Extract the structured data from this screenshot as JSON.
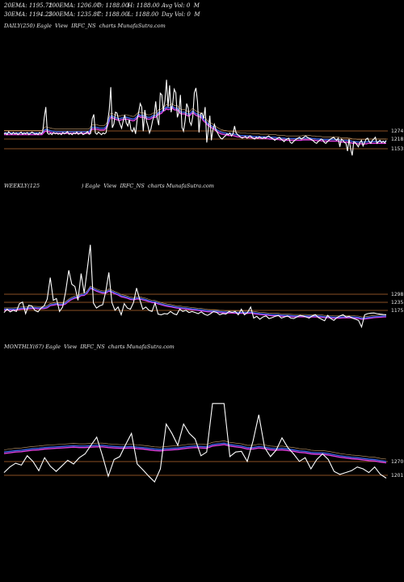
{
  "header": {
    "ema20": "20EMA: 1195.72",
    "ema100": "100EMA: 1206.07",
    "open": "O: 1188.00",
    "high": "H: 1188.00",
    "avg_vol": "Avg Vol: 0  M",
    "ema30": "30EMA: 1194.25",
    "ema200": "200EMA: 1235.87",
    "close": "C: 1188.00",
    "low": "L: 1188.00",
    "day_vol": "Day Vol: 0  M"
  },
  "colors": {
    "price": "#ffffff",
    "ema_blue": "#3b5fe0",
    "ema_magenta": "#e040e0",
    "ema_tan": "#c8a070",
    "level": "#b86a30"
  },
  "chart_data": [
    {
      "type": "line",
      "title": "DAILY(250) Eagle  View  IRFC_NS  charts MunafaSutra.com",
      "price_labels": [
        "1274",
        "1218",
        "1153"
      ],
      "series": [
        {
          "values": [
            1170,
            1172,
            1168,
            1175,
            1171,
            1169,
            1173,
            1170,
            1172,
            1168,
            1171,
            1174,
            1169,
            1172,
            1170,
            1173,
            1168,
            1171,
            1174,
            1172,
            1169,
            1171,
            1168,
            1173,
            1170,
            1175,
            1208,
            1232,
            1172,
            1169,
            1171,
            1168,
            1173,
            1170,
            1172,
            1169,
            1171,
            1168,
            1173,
            1170,
            1172,
            1175,
            1169,
            1171,
            1168,
            1172,
            1170,
            1174,
            1169,
            1171,
            1173,
            1168,
            1170,
            1172,
            1175,
            1169,
            1171,
            1205,
            1215,
            1172,
            1169,
            1174,
            1171,
            1168,
            1172,
            1170,
            1173,
            1200,
            1225,
            1278,
            1184,
            1193,
            1220,
            1218,
            1202,
            1192,
            1183,
            1200,
            1214,
            1195,
            1188,
            1203,
            1180,
            1175,
            1184,
            1170,
            1202,
            1220,
            1240,
            1232,
            1176,
            1225,
            1200,
            1188,
            1172,
            1182,
            1200,
            1212,
            1245,
            1205,
            1190,
            1264,
            1260,
            1222,
            1248,
            1295,
            1232,
            1282,
            1220,
            1240,
            1273,
            1265,
            1208,
            1220,
            1260,
            1185,
            1176,
            1200,
            1240,
            1230,
            1198,
            1190,
            1210,
            1265,
            1276,
            1245,
            1173,
            1216,
            1218,
            1205,
            1232,
            1150,
            1180,
            1212,
            1155,
            1180,
            1192,
            1178,
            1172,
            1165,
            1160,
            1158,
            1162,
            1165,
            1170,
            1168,
            1172,
            1165,
            1170,
            1188,
            1172,
            1168,
            1165,
            1162,
            1160,
            1162,
            1164,
            1160,
            1163,
            1165,
            1162,
            1160,
            1158,
            1162,
            1160,
            1163,
            1161,
            1159,
            1162,
            1160,
            1163,
            1165,
            1162,
            1160,
            1158,
            1155,
            1158,
            1160,
            1162,
            1158,
            1155,
            1152,
            1156,
            1158,
            1160,
            1150,
            1148,
            1152,
            1155,
            1158,
            1160,
            1162,
            1158,
            1160,
            1163,
            1165,
            1162,
            1160,
            1158,
            1156,
            1153,
            1150,
            1148,
            1152,
            1155,
            1158,
            1156,
            1150,
            1148,
            1152,
            1155,
            1158,
            1160,
            1162,
            1158,
            1155,
            1160,
            1140,
            1158,
            1155,
            1150,
            1148,
            1130,
            1158,
            1135,
            1120,
            1152,
            1150,
            1145,
            1140,
            1150,
            1155,
            1142,
            1150,
            1158,
            1160,
            1152,
            1148,
            1155,
            1158,
            1162,
            1148,
            1152,
            1155,
            1150,
            1153,
            1149,
            1155
          ]
        },
        {
          "values": [
            1172,
            1172,
            1172,
            1172,
            1172,
            1172,
            1172,
            1172,
            1172,
            1172,
            1172,
            1172,
            1172,
            1172,
            1172,
            1172,
            1172,
            1172,
            1172,
            1172,
            1172,
            1172,
            1172,
            1172,
            1172,
            1172,
            1176,
            1180,
            1180,
            1179,
            1178,
            1177,
            1176,
            1176,
            1175,
            1175,
            1175,
            1175,
            1175,
            1175,
            1175,
            1175,
            1175,
            1175,
            1175,
            1175,
            1175,
            1175,
            1175,
            1175,
            1175,
            1175,
            1175,
            1175,
            1175,
            1175,
            1175,
            1180,
            1185,
            1185,
            1185,
            1185,
            1184,
            1183,
            1183,
            1183,
            1183,
            1186,
            1190,
            1200,
            1210,
            1212,
            1210,
            1208,
            1207,
            1206,
            1205,
            1206,
            1207,
            1207,
            1208,
            1208,
            1207,
            1206,
            1205,
            1204,
            1205,
            1208,
            1212,
            1215,
            1212,
            1213,
            1212,
            1211,
            1209,
            1208,
            1208,
            1209,
            1212,
            1212,
            1212,
            1216,
            1220,
            1220,
            1222,
            1227,
            1228,
            1232,
            1230,
            1230,
            1232,
            1234,
            1230,
            1229,
            1230,
            1226,
            1222,
            1220,
            1220,
            1220,
            1218,
            1216,
            1215,
            1218,
            1222,
            1222,
            1218,
            1216,
            1215,
            1213,
            1213,
            1206,
            1202,
            1200,
            1195,
            1192,
            1190,
            1188,
            1186,
            1183,
            1180,
            1178,
            1176,
            1174,
            1173,
            1172,
            1172,
            1171,
            1170,
            1170,
            1170,
            1170,
            1169,
            1168,
            1167,
            1167,
            1166,
            1166,
            1166,
            1166,
            1165,
            1165,
            1165,
            1165,
            1164,
            1164,
            1164,
            1164,
            1164,
            1163,
            1163,
            1163,
            1163,
            1163,
            1163,
            1162,
            1162,
            1162,
            1162,
            1162,
            1161,
            1161,
            1160,
            1160,
            1160,
            1160,
            1159,
            1159,
            1159,
            1159,
            1159,
            1159,
            1159,
            1159,
            1159,
            1159,
            1159,
            1160,
            1160,
            1160,
            1160,
            1160,
            1160,
            1159,
            1159,
            1159,
            1158,
            1158,
            1158,
            1158,
            1157,
            1157,
            1157,
            1157,
            1157,
            1157,
            1157,
            1157,
            1157,
            1157,
            1157,
            1156,
            1155,
            1155,
            1155,
            1155,
            1155,
            1154,
            1154,
            1153,
            1152,
            1152,
            1152,
            1151,
            1151,
            1151,
            1151,
            1151,
            1151,
            1151,
            1152,
            1152,
            1152,
            1152,
            1152,
            1152,
            1152,
            1152,
            1152,
            1152,
            1152,
            1152,
            1152
          ]
        }
      ]
    },
    {
      "type": "line",
      "title": "WEEKLY(125                         ) Eagle  View  IRFC_NS  charts MunafaSutra.com",
      "price_labels": [
        "1298",
        "1235",
        "1175"
      ],
      "series": [
        {
          "values": [
            1185,
            1200,
            1188,
            1195,
            1190,
            1225,
            1232,
            1180,
            1218,
            1215,
            1195,
            1188,
            1205,
            1215,
            1245,
            1342,
            1240,
            1248,
            1190,
            1210,
            1280,
            1375,
            1312,
            1302,
            1240,
            1360,
            1272,
            1380,
            1490,
            1228,
            1205,
            1215,
            1220,
            1280,
            1365,
            1230,
            1195,
            1210,
            1175,
            1225,
            1205,
            1200,
            1230,
            1295,
            1245,
            1200,
            1210,
            1195,
            1190,
            1228,
            1178,
            1175,
            1180,
            1178,
            1190,
            1180,
            1175,
            1200,
            1190,
            1195,
            1185,
            1190,
            1185,
            1180,
            1188,
            1178,
            1172,
            1180,
            1190,
            1185,
            1175,
            1180,
            1178,
            1190,
            1185,
            1190,
            1175,
            1200,
            1175,
            1185,
            1210,
            1160,
            1168,
            1155,
            1165,
            1170,
            1158,
            1162,
            1168,
            1172,
            1160,
            1165,
            1170,
            1160,
            1158,
            1165,
            1172,
            1170,
            1165,
            1160,
            1170,
            1175,
            1162,
            1155,
            1148,
            1172,
            1158,
            1150,
            1162,
            1170,
            1175,
            1165,
            1168,
            1160,
            1155,
            1150,
            1120,
            1175,
            1180,
            1182,
            1183,
            1180,
            1178,
            1176,
            1175
          ]
        },
        {
          "values": [
            1200,
            1200,
            1200,
            1200,
            1201,
            1203,
            1205,
            1204,
            1206,
            1207,
            1207,
            1206,
            1206,
            1207,
            1210,
            1220,
            1222,
            1225,
            1222,
            1222,
            1228,
            1240,
            1248,
            1254,
            1255,
            1265,
            1266,
            1277,
            1298,
            1292,
            1285,
            1280,
            1276,
            1276,
            1285,
            1280,
            1273,
            1268,
            1260,
            1257,
            1253,
            1248,
            1246,
            1250,
            1250,
            1246,
            1243,
            1238,
            1234,
            1233,
            1228,
            1224,
            1220,
            1217,
            1215,
            1212,
            1209,
            1208,
            1206,
            1205,
            1203,
            1201,
            1200,
            1198,
            1197,
            1195,
            1193,
            1192,
            1192,
            1191,
            1189,
            1188,
            1187,
            1187,
            1187,
            1186,
            1185,
            1186,
            1185,
            1185,
            1187,
            1184,
            1182,
            1180,
            1179,
            1178,
            1176,
            1175,
            1175,
            1175,
            1173,
            1172,
            1172,
            1171,
            1170,
            1170,
            1170,
            1170,
            1170,
            1169,
            1169,
            1170,
            1169,
            1168,
            1166,
            1166,
            1165,
            1164,
            1164,
            1164,
            1165,
            1165,
            1165,
            1165,
            1164,
            1163,
            1159,
            1160,
            1162,
            1164,
            1166,
            1167,
            1168,
            1169,
            1170
          ]
        }
      ]
    },
    {
      "type": "line",
      "title": "MONTHLY(67) Eagle  View  IRFC_NS  charts MunafaSutra.com",
      "price_labels": [
        "1270",
        "1201"
      ],
      "series": [
        {
          "values": [
            1195,
            1210,
            1220,
            1215,
            1240,
            1225,
            1200,
            1235,
            1212,
            1198,
            1213,
            1228,
            1218,
            1235,
            1245,
            1268,
            1290,
            1240,
            1185,
            1230,
            1238,
            1270,
            1300,
            1218,
            1202,
            1185,
            1170,
            1205,
            1325,
            1300,
            1268,
            1325,
            1300,
            1285,
            1240,
            1250,
            1380,
            1380,
            1380,
            1238,
            1250,
            1252,
            1225,
            1280,
            1350,
            1262,
            1238,
            1255,
            1288,
            1262,
            1245,
            1225,
            1235,
            1205,
            1230,
            1245,
            1230,
            1198,
            1190,
            1195,
            1200,
            1210,
            1205,
            1195,
            1210,
            1190,
            1180
          ]
        },
        {
          "values": [
            1250,
            1252,
            1254,
            1255,
            1257,
            1259,
            1260,
            1262,
            1263,
            1264,
            1265,
            1266,
            1267,
            1266,
            1266,
            1267,
            1268,
            1268,
            1266,
            1265,
            1264,
            1264,
            1265,
            1263,
            1262,
            1260,
            1258,
            1257,
            1259,
            1260,
            1261,
            1263,
            1265,
            1266,
            1265,
            1264,
            1270,
            1272,
            1274,
            1270,
            1268,
            1266,
            1262,
            1262,
            1265,
            1263,
            1260,
            1259,
            1260,
            1258,
            1256,
            1253,
            1252,
            1249,
            1248,
            1248,
            1246,
            1243,
            1240,
            1238,
            1236,
            1235,
            1233,
            1231,
            1230,
            1227,
            1225
          ]
        }
      ]
    }
  ]
}
